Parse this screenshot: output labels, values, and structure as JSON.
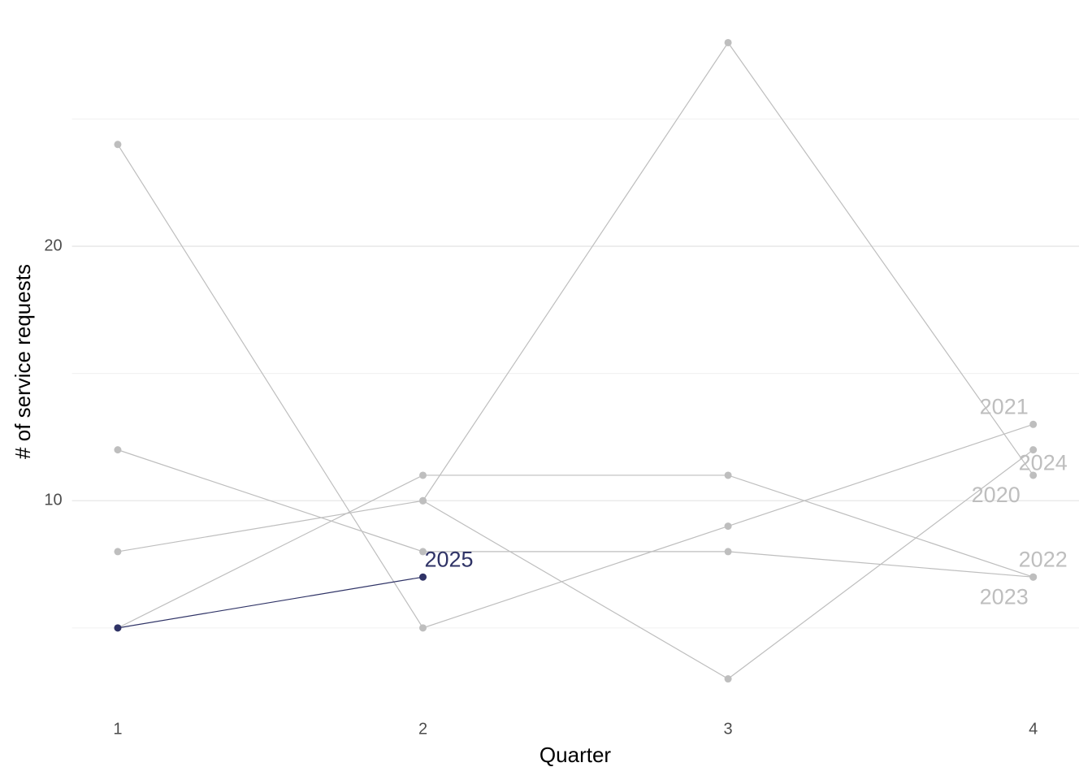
{
  "chart_data": {
    "type": "line",
    "x_label": "Quarter",
    "y_label": "# of service requests",
    "x": [
      1,
      2,
      3,
      4
    ],
    "xlim": [
      0.85,
      4.15
    ],
    "xticks": [
      1,
      2,
      3,
      4
    ],
    "ylim": [
      2.25,
      28.75
    ],
    "yticks": [
      10,
      20
    ],
    "minor_yticks": [
      5,
      15,
      25
    ],
    "grid": true,
    "series": [
      {
        "name": "2020",
        "color": "#bebebe",
        "values": [
          null,
          10,
          28,
          11
        ]
      },
      {
        "name": "2021",
        "color": "#bebebe",
        "values": [
          24,
          5,
          9,
          13
        ]
      },
      {
        "name": "2022",
        "color": "#bebebe",
        "values": [
          12,
          8,
          8,
          7
        ]
      },
      {
        "name": "2023",
        "color": "#bebebe",
        "values": [
          5,
          11,
          11,
          7
        ]
      },
      {
        "name": "2024",
        "color": "#bebebe",
        "values": [
          8,
          10,
          3,
          12
        ]
      },
      {
        "name": "2025",
        "color": "#2f3366",
        "values": [
          5,
          7,
          null,
          null
        ]
      }
    ]
  }
}
